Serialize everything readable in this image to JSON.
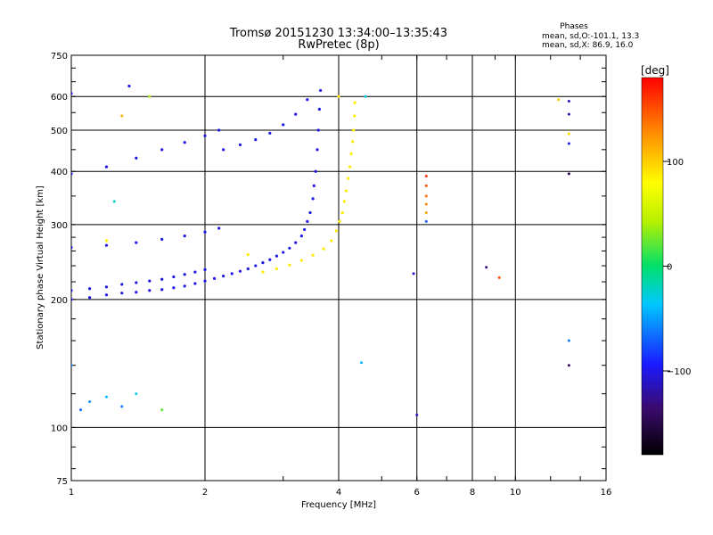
{
  "chart_data": {
    "type": "scatter",
    "title": "Tromsø 20151230 13:34:00–13:35:43",
    "subtitle": "RwPretec (8p)",
    "phases_note": {
      "title": "Phases",
      "line_o": "mean, sd,O:-101.1, 13.3",
      "line_x": "mean, sd,X:  86.9, 16.0"
    },
    "xlabel": "Frequency [MHz]",
    "ylabel": "Stationary phase Virtual Height [km]",
    "x_scale": "log",
    "y_scale": "log",
    "xlim": [
      1,
      16
    ],
    "ylim": [
      75,
      750
    ],
    "x_ticks": [
      1,
      2,
      4,
      6,
      8,
      10,
      16
    ],
    "x_tick_labels": [
      "1",
      "2",
      "4",
      "6",
      "8",
      "10",
      "16"
    ],
    "y_ticks": [
      75,
      100,
      200,
      300,
      400,
      500,
      600,
      750
    ],
    "y_tick_labels": [
      "75",
      "100",
      "200",
      "300",
      "400",
      "500",
      "600",
      "750"
    ],
    "grid": true,
    "colorbar": {
      "unit": "[deg]",
      "range": [
        -180,
        180
      ],
      "ticks": [
        -100,
        0,
        100
      ],
      "tick_labels": [
        "−100",
        "0",
        "100"
      ]
    },
    "traces": [
      {
        "mode": "O",
        "phase_deg": -101,
        "points": [
          [
            1.0,
            200
          ],
          [
            1.1,
            202
          ],
          [
            1.2,
            205
          ],
          [
            1.3,
            207
          ],
          [
            1.4,
            208
          ],
          [
            1.5,
            210
          ],
          [
            1.6,
            211
          ],
          [
            1.7,
            213
          ],
          [
            1.8,
            215
          ],
          [
            1.9,
            218
          ],
          [
            2.0,
            221
          ],
          [
            2.1,
            224
          ],
          [
            2.2,
            227
          ],
          [
            2.3,
            230
          ],
          [
            2.4,
            233
          ],
          [
            2.5,
            236
          ],
          [
            2.6,
            240
          ],
          [
            2.7,
            244
          ],
          [
            2.8,
            248
          ],
          [
            2.9,
            253
          ],
          [
            3.0,
            258
          ],
          [
            3.1,
            264
          ],
          [
            3.2,
            272
          ],
          [
            3.3,
            282
          ],
          [
            3.35,
            292
          ],
          [
            3.4,
            305
          ],
          [
            3.45,
            320
          ],
          [
            3.5,
            345
          ],
          [
            3.52,
            370
          ],
          [
            3.55,
            400
          ],
          [
            3.58,
            450
          ],
          [
            3.6,
            500
          ],
          [
            3.62,
            560
          ],
          [
            3.64,
            620
          ],
          [
            1.0,
            210
          ],
          [
            1.1,
            212
          ],
          [
            1.2,
            214
          ],
          [
            1.3,
            217
          ],
          [
            1.4,
            219
          ],
          [
            1.5,
            221
          ],
          [
            1.6,
            223
          ],
          [
            1.7,
            226
          ],
          [
            1.8,
            229
          ],
          [
            1.9,
            232
          ],
          [
            2.0,
            235
          ],
          [
            1.0,
            265
          ],
          [
            1.2,
            268
          ],
          [
            1.4,
            272
          ],
          [
            1.6,
            277
          ],
          [
            1.8,
            282
          ],
          [
            2.0,
            288
          ],
          [
            2.15,
            294
          ],
          [
            1.0,
            395
          ],
          [
            1.2,
            410
          ],
          [
            1.4,
            430
          ],
          [
            1.6,
            450
          ],
          [
            1.8,
            468
          ],
          [
            2.0,
            485
          ],
          [
            2.15,
            500
          ],
          [
            2.2,
            450
          ],
          [
            2.4,
            462
          ],
          [
            2.6,
            475
          ],
          [
            2.8,
            492
          ],
          [
            3.0,
            515
          ],
          [
            3.2,
            545
          ],
          [
            3.4,
            590
          ],
          [
            1.0,
            610
          ],
          [
            1.35,
            635
          ]
        ]
      },
      {
        "mode": "X",
        "phase_deg": 87,
        "points": [
          [
            2.7,
            232
          ],
          [
            2.9,
            236
          ],
          [
            3.1,
            241
          ],
          [
            3.3,
            247
          ],
          [
            3.5,
            254
          ],
          [
            3.7,
            263
          ],
          [
            3.85,
            275
          ],
          [
            3.95,
            290
          ],
          [
            4.02,
            305
          ],
          [
            4.08,
            320
          ],
          [
            4.12,
            340
          ],
          [
            4.16,
            360
          ],
          [
            4.2,
            385
          ],
          [
            4.24,
            410
          ],
          [
            4.27,
            440
          ],
          [
            4.3,
            470
          ],
          [
            4.32,
            500
          ],
          [
            4.34,
            540
          ],
          [
            4.35,
            580
          ],
          [
            4.0,
            600
          ],
          [
            1.2,
            275
          ],
          [
            2.5,
            255
          ]
        ]
      }
    ],
    "scattered_points": [
      {
        "x": 6.3,
        "y": 390,
        "phase_deg": 160
      },
      {
        "x": 6.3,
        "y": 370,
        "phase_deg": 150
      },
      {
        "x": 6.3,
        "y": 350,
        "phase_deg": 140
      },
      {
        "x": 6.3,
        "y": 335,
        "phase_deg": 130
      },
      {
        "x": 6.3,
        "y": 320,
        "phase_deg": 120
      },
      {
        "x": 6.3,
        "y": 305,
        "phase_deg": -70
      },
      {
        "x": 13.2,
        "y": 585,
        "phase_deg": -110
      },
      {
        "x": 13.2,
        "y": 545,
        "phase_deg": -120
      },
      {
        "x": 13.2,
        "y": 490,
        "phase_deg": 95
      },
      {
        "x": 13.2,
        "y": 465,
        "phase_deg": -100
      },
      {
        "x": 13.2,
        "y": 395,
        "phase_deg": -150
      },
      {
        "x": 13.2,
        "y": 160,
        "phase_deg": -60
      },
      {
        "x": 13.2,
        "y": 140,
        "phase_deg": -140
      },
      {
        "x": 12.5,
        "y": 590,
        "phase_deg": 100
      },
      {
        "x": 5.9,
        "y": 230,
        "phase_deg": -110
      },
      {
        "x": 6.0,
        "y": 107,
        "phase_deg": -110
      },
      {
        "x": 8.6,
        "y": 238,
        "phase_deg": -130
      },
      {
        "x": 9.2,
        "y": 225,
        "phase_deg": 150
      },
      {
        "x": 4.6,
        "y": 600,
        "phase_deg": -30
      },
      {
        "x": 4.5,
        "y": 142,
        "phase_deg": -40
      },
      {
        "x": 1.0,
        "y": 140,
        "phase_deg": -60
      },
      {
        "x": 1.05,
        "y": 110,
        "phase_deg": -70
      },
      {
        "x": 1.1,
        "y": 115,
        "phase_deg": -55
      },
      {
        "x": 1.2,
        "y": 118,
        "phase_deg": -40
      },
      {
        "x": 1.3,
        "y": 112,
        "phase_deg": -60
      },
      {
        "x": 1.4,
        "y": 120,
        "phase_deg": -30
      },
      {
        "x": 1.6,
        "y": 110,
        "phase_deg": 20
      },
      {
        "x": 1.25,
        "y": 340,
        "phase_deg": -20
      },
      {
        "x": 1.5,
        "y": 600,
        "phase_deg": 40
      },
      {
        "x": 1.3,
        "y": 540,
        "phase_deg": 110
      }
    ]
  }
}
